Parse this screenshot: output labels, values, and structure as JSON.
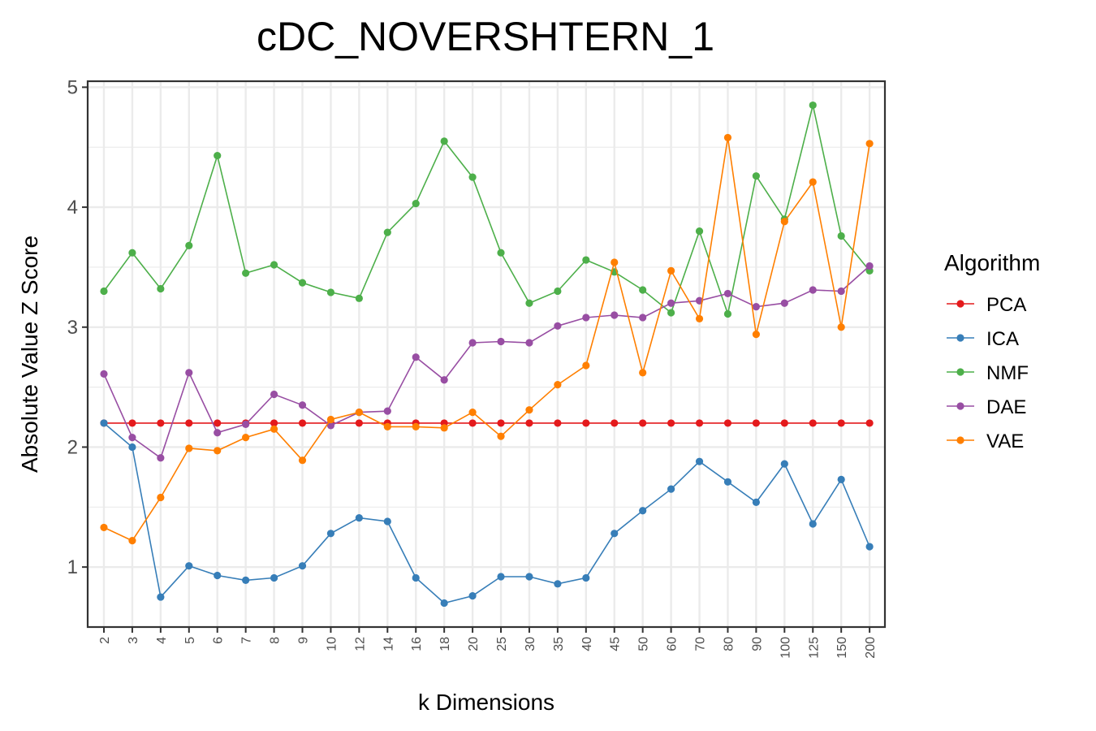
{
  "chart_data": {
    "type": "line",
    "title": "cDC_NOVERSHTERN_1",
    "xlabel": "k Dimensions",
    "ylabel": "Absolute Value Z Score",
    "categories": [
      "2",
      "3",
      "4",
      "5",
      "6",
      "7",
      "8",
      "9",
      "10",
      "12",
      "14",
      "16",
      "18",
      "20",
      "25",
      "30",
      "35",
      "40",
      "45",
      "50",
      "60",
      "70",
      "80",
      "90",
      "100",
      "125",
      "150",
      "200"
    ],
    "y_ticks": [
      "1",
      "2",
      "3",
      "4",
      "5"
    ],
    "ylim": [
      0.5,
      5.05
    ],
    "grid": true,
    "legend": {
      "title": "Algorithm",
      "placement": "right"
    },
    "series": [
      {
        "name": "PCA",
        "color": "#e41a1c",
        "values": [
          2.2,
          2.2,
          2.2,
          2.2,
          2.2,
          2.2,
          2.2,
          2.2,
          2.2,
          2.2,
          2.2,
          2.2,
          2.2,
          2.2,
          2.2,
          2.2,
          2.2,
          2.2,
          2.2,
          2.2,
          2.2,
          2.2,
          2.2,
          2.2,
          2.2,
          2.2,
          2.2,
          2.2
        ]
      },
      {
        "name": "ICA",
        "color": "#377eb8",
        "values": [
          2.2,
          2.0,
          0.75,
          1.01,
          0.93,
          0.89,
          0.91,
          1.01,
          1.28,
          1.41,
          1.38,
          0.91,
          0.7,
          0.76,
          0.92,
          0.92,
          0.86,
          0.91,
          1.28,
          1.47,
          1.65,
          1.88,
          1.71,
          1.54,
          1.86,
          1.36,
          1.73,
          1.17
        ]
      },
      {
        "name": "NMF",
        "color": "#4daf4a",
        "values": [
          3.3,
          3.62,
          3.32,
          3.68,
          4.43,
          3.45,
          3.52,
          3.37,
          3.29,
          3.24,
          3.79,
          4.03,
          4.55,
          4.25,
          3.62,
          3.2,
          3.3,
          3.56,
          3.46,
          3.31,
          3.12,
          3.8,
          3.11,
          4.26,
          3.9,
          4.85,
          3.76,
          3.47
        ]
      },
      {
        "name": "DAE",
        "color": "#984ea3",
        "values": [
          2.61,
          2.08,
          1.91,
          2.62,
          2.12,
          2.19,
          2.44,
          2.35,
          2.18,
          2.29,
          2.3,
          2.75,
          2.56,
          2.87,
          2.88,
          2.87,
          3.01,
          3.08,
          3.1,
          3.08,
          3.2,
          3.22,
          3.28,
          3.17,
          3.2,
          3.31,
          3.3,
          3.51
        ]
      },
      {
        "name": "VAE",
        "color": "#ff7f00",
        "values": [
          1.33,
          1.22,
          1.58,
          1.99,
          1.97,
          2.08,
          2.15,
          1.89,
          2.23,
          2.29,
          2.17,
          2.17,
          2.16,
          2.29,
          2.09,
          2.31,
          2.52,
          2.68,
          3.54,
          2.62,
          3.47,
          3.07,
          4.58,
          2.94,
          3.88,
          4.21,
          3.0,
          4.53
        ]
      }
    ]
  }
}
